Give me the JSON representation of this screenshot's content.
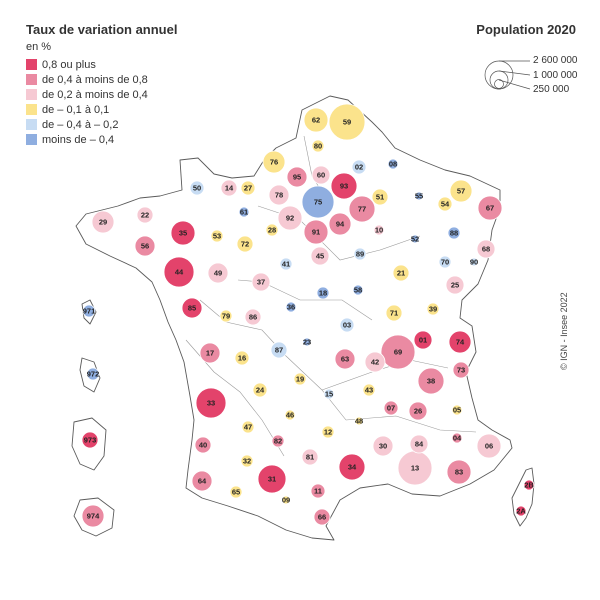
{
  "legend": {
    "title": "Taux de variation annuel",
    "unit": "en %",
    "classes": [
      {
        "label": "0,8 ou plus",
        "color": "#e3436b"
      },
      {
        "label": "de 0,4 à moins de 0,8",
        "color": "#ea8aa2"
      },
      {
        "label": "de 0,2 à moins de 0,4",
        "color": "#f6c9d3"
      },
      {
        "label": "de – 0,1 à 0,1",
        "color": "#fbe38c"
      },
      {
        "label": "de – 0,4 à  – 0,2",
        "color": "#c7dcf3"
      },
      {
        "label": "moins de – 0,4",
        "color": "#8faee0"
      }
    ]
  },
  "population_legend": {
    "title": "Population 2020",
    "values": [
      "2 600 000",
      "1 000 000",
      "250 000"
    ]
  },
  "credit": "© IGN - Insee 2022",
  "departments": [
    {
      "code": "62",
      "cls": 3
    },
    {
      "code": "59",
      "cls": 3
    },
    {
      "code": "80",
      "cls": 3
    },
    {
      "code": "76",
      "cls": 3
    },
    {
      "code": "02",
      "cls": 4
    },
    {
      "code": "08",
      "cls": 5
    },
    {
      "code": "95",
      "cls": 1
    },
    {
      "code": "60",
      "cls": 2
    },
    {
      "code": "93",
      "cls": 0
    },
    {
      "code": "50",
      "cls": 4
    },
    {
      "code": "14",
      "cls": 2
    },
    {
      "code": "27",
      "cls": 3
    },
    {
      "code": "78",
      "cls": 2
    },
    {
      "code": "75",
      "cls": 5
    },
    {
      "code": "51",
      "cls": 3
    },
    {
      "code": "55",
      "cls": 5
    },
    {
      "code": "57",
      "cls": 3
    },
    {
      "code": "67",
      "cls": 1
    },
    {
      "code": "29",
      "cls": 2
    },
    {
      "code": "22",
      "cls": 2
    },
    {
      "code": "61",
      "cls": 5
    },
    {
      "code": "92",
      "cls": 2
    },
    {
      "code": "77",
      "cls": 1
    },
    {
      "code": "94",
      "cls": 1
    },
    {
      "code": "54",
      "cls": 3
    },
    {
      "code": "35",
      "cls": 0
    },
    {
      "code": "53",
      "cls": 3
    },
    {
      "code": "72",
      "cls": 3
    },
    {
      "code": "28",
      "cls": 3
    },
    {
      "code": "91",
      "cls": 1
    },
    {
      "code": "10",
      "cls": 2
    },
    {
      "code": "52",
      "cls": 5
    },
    {
      "code": "88",
      "cls": 5
    },
    {
      "code": "56",
      "cls": 1
    },
    {
      "code": "68",
      "cls": 2
    },
    {
      "code": "45",
      "cls": 2
    },
    {
      "code": "89",
      "cls": 4
    },
    {
      "code": "70",
      "cls": 4
    },
    {
      "code": "90",
      "cls": 4
    },
    {
      "code": "44",
      "cls": 0
    },
    {
      "code": "49",
      "cls": 2
    },
    {
      "code": "41",
      "cls": 4
    },
    {
      "code": "21",
      "cls": 3
    },
    {
      "code": "37",
      "cls": 2
    },
    {
      "code": "25",
      "cls": 2
    },
    {
      "code": "18",
      "cls": 5
    },
    {
      "code": "58",
      "cls": 5
    },
    {
      "code": "36",
      "cls": 5
    },
    {
      "code": "85",
      "cls": 0
    },
    {
      "code": "79",
      "cls": 3
    },
    {
      "code": "86",
      "cls": 2
    },
    {
      "code": "71",
      "cls": 3
    },
    {
      "code": "39",
      "cls": 3
    },
    {
      "code": "03",
      "cls": 4
    },
    {
      "code": "23",
      "cls": 5
    },
    {
      "code": "87",
      "cls": 4
    },
    {
      "code": "69",
      "cls": 1
    },
    {
      "code": "01",
      "cls": 0
    },
    {
      "code": "74",
      "cls": 0
    },
    {
      "code": "17",
      "cls": 1
    },
    {
      "code": "16",
      "cls": 3
    },
    {
      "code": "63",
      "cls": 1
    },
    {
      "code": "42",
      "cls": 2
    },
    {
      "code": "73",
      "cls": 1
    },
    {
      "code": "19",
      "cls": 3
    },
    {
      "code": "38",
      "cls": 1
    },
    {
      "code": "24",
      "cls": 3
    },
    {
      "code": "15",
      "cls": 4
    },
    {
      "code": "43",
      "cls": 3
    },
    {
      "code": "33",
      "cls": 0
    },
    {
      "code": "46",
      "cls": 3
    },
    {
      "code": "07",
      "cls": 1
    },
    {
      "code": "26",
      "cls": 1
    },
    {
      "code": "05",
      "cls": 3
    },
    {
      "code": "47",
      "cls": 3
    },
    {
      "code": "48",
      "cls": 3
    },
    {
      "code": "12",
      "cls": 3
    },
    {
      "code": "82",
      "cls": 1
    },
    {
      "code": "30",
      "cls": 2
    },
    {
      "code": "84",
      "cls": 2
    },
    {
      "code": "04",
      "cls": 1
    },
    {
      "code": "06",
      "cls": 2
    },
    {
      "code": "40",
      "cls": 1
    },
    {
      "code": "32",
      "cls": 3
    },
    {
      "code": "81",
      "cls": 2
    },
    {
      "code": "64",
      "cls": 1
    },
    {
      "code": "31",
      "cls": 0
    },
    {
      "code": "34",
      "cls": 0
    },
    {
      "code": "13",
      "cls": 2
    },
    {
      "code": "83",
      "cls": 1
    },
    {
      "code": "65",
      "cls": 3
    },
    {
      "code": "09",
      "cls": 3
    },
    {
      "code": "11",
      "cls": 1
    },
    {
      "code": "66",
      "cls": 1
    },
    {
      "code": "2B",
      "cls": 0
    },
    {
      "code": "2A",
      "cls": 0
    },
    {
      "code": "971",
      "cls": 5
    },
    {
      "code": "972",
      "cls": 5
    },
    {
      "code": "973",
      "cls": 0
    },
    {
      "code": "974",
      "cls": 1
    }
  ]
}
